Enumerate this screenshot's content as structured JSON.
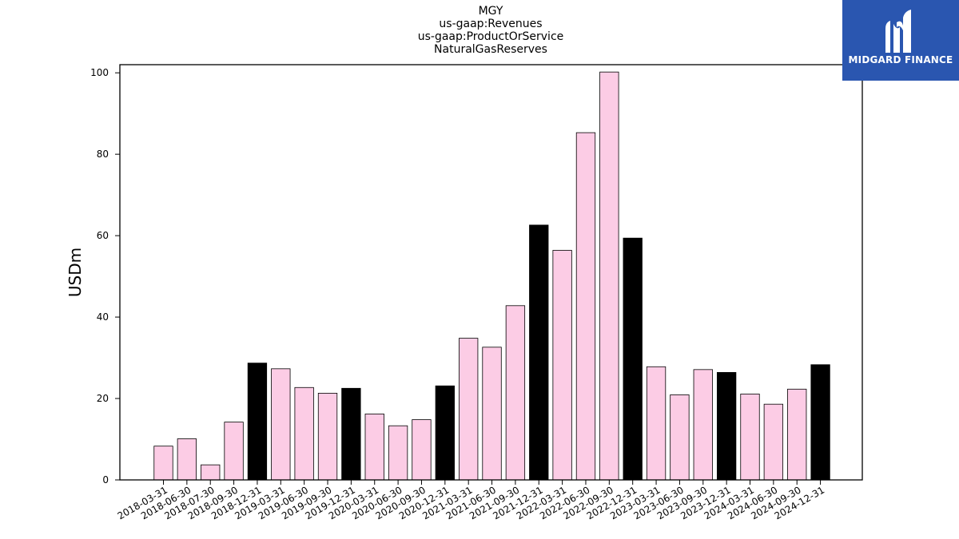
{
  "chart_data": {
    "type": "bar",
    "title_lines": [
      "MGY",
      "us-gaap:Revenues",
      "us-gaap:ProductOrService",
      "NaturalGasReserves"
    ],
    "xlabel": "",
    "ylabel": "USDm",
    "ylim": [
      0,
      102
    ],
    "yticks": [
      0,
      20,
      40,
      60,
      80,
      100
    ],
    "grid": false,
    "categories": [
      "2018-03-31",
      "2018-06-30",
      "2018-07-30",
      "2018-09-30",
      "2018-12-31",
      "2019-03-31",
      "2019-06-30",
      "2019-09-30",
      "2019-12-31",
      "2020-03-31",
      "2020-06-30",
      "2020-09-30",
      "2020-12-31",
      "2021-03-31",
      "2021-06-30",
      "2021-09-30",
      "2021-12-31",
      "2022-03-31",
      "2022-06-30",
      "2022-09-30",
      "2022-12-31",
      "2023-03-31",
      "2023-06-30",
      "2023-09-30",
      "2023-12-31",
      "2024-03-31",
      "2024-06-30",
      "2024-09-30",
      "2024-12-31"
    ],
    "values": [
      8.3,
      10.1,
      3.7,
      14.2,
      28.7,
      27.3,
      22.7,
      21.3,
      22.5,
      16.2,
      13.3,
      14.8,
      23.1,
      34.8,
      32.6,
      42.8,
      62.6,
      56.4,
      85.3,
      100.2,
      59.4,
      27.8,
      20.9,
      27.1,
      26.4,
      21.1,
      18.6,
      22.3,
      28.3
    ],
    "bar_colors": [
      "#fccce5",
      "#fccce5",
      "#fccce5",
      "#fccce5",
      "#000000",
      "#fccce5",
      "#fccce5",
      "#fccce5",
      "#000000",
      "#fccce5",
      "#fccce5",
      "#fccce5",
      "#000000",
      "#fccce5",
      "#fccce5",
      "#fccce5",
      "#000000",
      "#fccce5",
      "#fccce5",
      "#fccce5",
      "#000000",
      "#fccce5",
      "#fccce5",
      "#fccce5",
      "#000000",
      "#fccce5",
      "#fccce5",
      "#fccce5",
      "#000000"
    ]
  },
  "logo": {
    "text": "MIDGARD FINANCE",
    "background": "#2a56b0"
  }
}
